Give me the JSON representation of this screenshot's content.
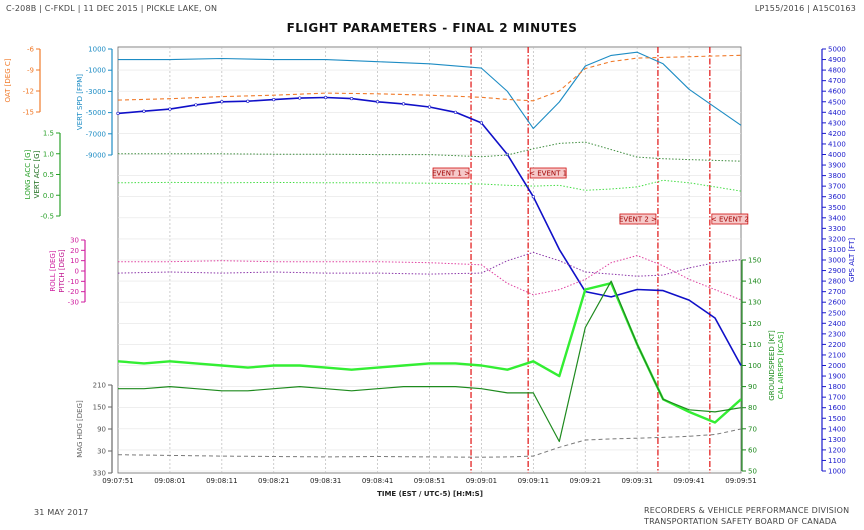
{
  "header": {
    "left": "C-208B | C-FKDL | 11 DEC 2015 | PICKLE LAKE, ON",
    "right": "LP155/2016 | A15C0163"
  },
  "footer": {
    "date": "31 MAY 2017",
    "org_line1": "RECORDERS & VEHICLE PERFORMANCE DIVISION",
    "org_line2": "TRANSPORTATION SAFETY BOARD OF CANADA"
  },
  "chart_data": {
    "type": "line",
    "title": "FLIGHT PARAMETERS - FINAL 2 MINUTES",
    "xlabel": "TIME (EST / UTC-5) [H:M:S]",
    "x_ticks": [
      "09:07:51",
      "09:08:01",
      "09:08:11",
      "09:08:21",
      "09:08:31",
      "09:08:41",
      "09:08:51",
      "09:09:01",
      "09:09:11",
      "09:09:21",
      "09:09:31",
      "09:09:41",
      "09:09:51"
    ],
    "x_range_s": [
      0,
      120
    ],
    "grid": true,
    "events": [
      {
        "label": "EVENT 1 >",
        "time_s": 68,
        "label_side": "left"
      },
      {
        "label": "< EVENT 1",
        "time_s": 79,
        "label_side": "right"
      },
      {
        "label": "EVENT 2 >",
        "time_s": 104,
        "label_side": "left"
      },
      {
        "label": "< EVENT 2",
        "time_s": 114,
        "label_side": "right"
      }
    ],
    "axes": [
      {
        "id": "oat",
        "label": "OAT [DEG C]",
        "color": "#f07a2a",
        "side": "left",
        "ticks": [
          "-6",
          "-9",
          "-12",
          "-15"
        ]
      },
      {
        "id": "vs",
        "label": "VERT SPD [FPM]",
        "color": "#1d8cc4",
        "side": "left",
        "ticks": [
          "1000",
          "-1000",
          "-3000",
          "-5000",
          "-7000",
          "-9000"
        ]
      },
      {
        "id": "acc",
        "label": "LONG ACC [G]",
        "label2": "VERT ACC [G]",
        "color": "#28a028",
        "side": "left",
        "ticks": [
          "1.5",
          "1.0",
          "0.5",
          "0.0",
          "-0.5"
        ]
      },
      {
        "id": "att",
        "label": "ROLL [DEG]",
        "label2": "PITCH [DEG]",
        "color": "#d020a0",
        "side": "left",
        "ticks": [
          "30",
          "20",
          "10",
          "0",
          "-10",
          "-20",
          "-30"
        ]
      },
      {
        "id": "hdg",
        "label": "MAG HDG [DEG]",
        "color": "#666666",
        "side": "left",
        "ticks": [
          "210",
          "150",
          "90",
          "30",
          "330"
        ]
      },
      {
        "id": "alt",
        "label": "GPS ALT [FT]",
        "color": "#1a1acc",
        "side": "right",
        "ticks": [
          "5000",
          "4900",
          "4800",
          "4700",
          "4600",
          "4500",
          "4400",
          "4300",
          "4200",
          "4100",
          "4000",
          "3900",
          "3800",
          "3700",
          "3600",
          "3500",
          "3400",
          "3300",
          "3200",
          "3100",
          "3000",
          "2900",
          "2800",
          "2700",
          "2600",
          "2500",
          "2400",
          "2300",
          "2200",
          "2100",
          "2000",
          "1900",
          "1800",
          "1700",
          "1600",
          "1500",
          "1400",
          "1300",
          "1200",
          "1100",
          "1000"
        ]
      },
      {
        "id": "spd",
        "label": "GROUNDSPEED [KT]",
        "label2": "CAL AIRSPD [KCAS]",
        "color": "#1e8a1e",
        "side": "right",
        "ticks": [
          "150",
          "140",
          "130",
          "120",
          "110",
          "100",
          "90",
          "80",
          "70",
          "60",
          "50"
        ]
      }
    ],
    "series": [
      {
        "name": "GPS ALT",
        "axis": "alt",
        "color": "#1010c8",
        "width": 1.6,
        "dash": "",
        "marker": true,
        "t": [
          0,
          5,
          10,
          15,
          20,
          25,
          30,
          35,
          40,
          45,
          50,
          55,
          60,
          65,
          70,
          75,
          80,
          85,
          90,
          95,
          100,
          105,
          110,
          115,
          120
        ],
        "v": [
          4390,
          4410,
          4430,
          4470,
          4500,
          4505,
          4520,
          4535,
          4540,
          4530,
          4500,
          4480,
          4450,
          4400,
          4300,
          4000,
          3600,
          3100,
          2700,
          2650,
          2720,
          2710,
          2620,
          2450,
          2000
        ]
      },
      {
        "name": "VERT SPD",
        "axis": "vs",
        "color": "#1d8cc4",
        "width": 1.1,
        "dash": "",
        "t": [
          0,
          10,
          20,
          30,
          40,
          50,
          60,
          70,
          75,
          80,
          85,
          90,
          95,
          100,
          105,
          110,
          115,
          120
        ],
        "v": [
          0,
          0,
          100,
          0,
          0,
          -200,
          -400,
          -800,
          -3000,
          -6500,
          -4000,
          -600,
          400,
          700,
          -400,
          -2800,
          -4500,
          -6200
        ]
      },
      {
        "name": "OAT",
        "axis": "oat",
        "color": "#f07a2a",
        "width": 1.1,
        "dash": "4,3",
        "t": [
          0,
          10,
          20,
          30,
          40,
          50,
          60,
          70,
          75,
          80,
          85,
          90,
          95,
          100,
          105,
          110,
          115,
          120
        ],
        "v": [
          -13.3,
          -13.1,
          -12.8,
          -12.6,
          -12.3,
          -12.4,
          -12.6,
          -12.9,
          -13.2,
          -13.4,
          -12.0,
          -8.8,
          -7.8,
          -7.3,
          -7.2,
          -7.1,
          -7.0,
          -6.9
        ]
      },
      {
        "name": "VERT ACC",
        "axis": "acc",
        "color": "#3d8c3d",
        "width": 1.0,
        "dash": "1.5,1.8",
        "t": [
          0,
          10,
          20,
          30,
          40,
          50,
          60,
          70,
          75,
          80,
          85,
          90,
          95,
          100,
          105,
          110,
          115,
          120
        ],
        "v": [
          1.0,
          1.0,
          1.0,
          0.99,
          0.99,
          0.98,
          0.98,
          0.93,
          0.97,
          1.12,
          1.25,
          1.28,
          1.1,
          0.92,
          0.88,
          0.86,
          0.84,
          0.82
        ]
      },
      {
        "name": "LONG ACC",
        "axis": "acc",
        "color": "#44dd44",
        "width": 1.0,
        "dash": "1.5,1.8",
        "t": [
          0,
          10,
          20,
          30,
          40,
          50,
          60,
          70,
          75,
          80,
          85,
          90,
          95,
          100,
          105,
          110,
          115,
          120
        ],
        "v": [
          0.3,
          0.31,
          0.3,
          0.31,
          0.3,
          0.3,
          0.29,
          0.27,
          0.24,
          0.22,
          0.24,
          0.12,
          0.15,
          0.2,
          0.36,
          0.3,
          0.2,
          0.1
        ]
      },
      {
        "name": "ROLL",
        "axis": "att",
        "color": "#8a34a8",
        "width": 1.0,
        "dash": "1.5,1.8",
        "t": [
          0,
          10,
          20,
          30,
          40,
          50,
          60,
          70,
          75,
          80,
          85,
          90,
          95,
          100,
          105,
          110,
          115,
          120
        ],
        "v": [
          -2,
          -1,
          -2,
          -1,
          -2,
          -2,
          -3,
          -2,
          10,
          18,
          10,
          -1,
          -3,
          -5,
          -4,
          3,
          8,
          11
        ]
      },
      {
        "name": "PITCH",
        "axis": "att",
        "color": "#e040a0",
        "width": 1.0,
        "dash": "1.5,1.8",
        "t": [
          0,
          10,
          20,
          30,
          40,
          50,
          60,
          70,
          75,
          80,
          85,
          90,
          95,
          100,
          105,
          110,
          115,
          120
        ],
        "v": [
          9,
          9,
          10,
          9,
          9,
          9,
          8,
          6,
          -12,
          -23,
          -18,
          -8,
          8,
          15,
          5,
          -8,
          -18,
          -28
        ]
      },
      {
        "name": "CAL AIRSPD",
        "axis": "spd",
        "color": "#33ee33",
        "width": 2.4,
        "dash": "",
        "t": [
          0,
          5,
          10,
          15,
          20,
          25,
          30,
          35,
          40,
          45,
          50,
          55,
          60,
          65,
          70,
          75,
          80,
          85,
          90,
          95,
          100,
          105,
          110,
          115,
          120
        ],
        "v": [
          102,
          101,
          102,
          101,
          100,
          99,
          100,
          100,
          99,
          98,
          99,
          100,
          101,
          101,
          100,
          98,
          102,
          95,
          136,
          139,
          110,
          84,
          78,
          73,
          84
        ]
      },
      {
        "name": "GROUNDSPEED",
        "axis": "spd",
        "color": "#1e8a1e",
        "width": 1.2,
        "dash": "",
        "t": [
          0,
          5,
          10,
          15,
          20,
          25,
          30,
          35,
          40,
          45,
          50,
          55,
          60,
          65,
          70,
          75,
          80,
          85,
          90,
          95,
          100,
          105,
          110,
          115,
          120
        ],
        "v": [
          89,
          89,
          90,
          89,
          88,
          88,
          89,
          90,
          89,
          88,
          89,
          90,
          90,
          90,
          89,
          87,
          87,
          64,
          118,
          140,
          110,
          84,
          79,
          78,
          80
        ]
      },
      {
        "name": "MAG HDG",
        "axis": "hdg",
        "color": "#7a7a7a",
        "width": 1.0,
        "dash": "4,3",
        "t": [
          0,
          10,
          20,
          30,
          40,
          50,
          60,
          70,
          75,
          80,
          85,
          90,
          95,
          100,
          105,
          110,
          115,
          120
        ],
        "v": [
          20,
          18,
          16,
          15,
          14,
          15,
          14,
          13,
          14,
          16,
          40,
          60,
          63,
          65,
          67,
          70,
          75,
          90
        ]
      }
    ]
  }
}
